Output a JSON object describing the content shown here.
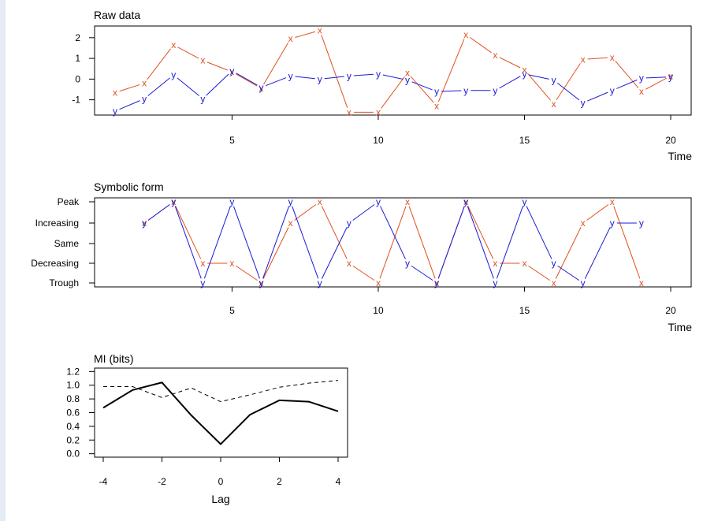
{
  "colors": {
    "x_series": "#e0501e",
    "y_series": "#1a1ad6",
    "mi_series": "#000000",
    "background_strip": "#e5ebf6"
  },
  "chart_data": [
    {
      "type": "line",
      "title": "Raw data",
      "xlabel": "Time",
      "ylabel": "",
      "xlim": [
        1,
        20
      ],
      "ylim": [
        -1.7,
        2.45
      ],
      "x_ticks": [
        5,
        10,
        15,
        20
      ],
      "y_ticks": [
        -1,
        0,
        1,
        2
      ],
      "x": [
        1,
        2,
        3,
        4,
        5,
        6,
        7,
        8,
        9,
        10,
        11,
        12,
        13,
        14,
        15,
        16,
        17,
        18,
        19,
        20
      ],
      "series": [
        {
          "marker": "x",
          "color": "#e0501e",
          "values": [
            -0.65,
            -0.2,
            1.65,
            0.9,
            0.35,
            -0.45,
            1.95,
            2.35,
            -1.6,
            -1.6,
            0.3,
            -1.3,
            2.15,
            1.15,
            0.45,
            -1.2,
            0.95,
            1.05,
            -0.6,
            0.15
          ]
        },
        {
          "marker": "y",
          "color": "#1a1ad6",
          "values": [
            -1.55,
            -0.95,
            0.2,
            -0.95,
            0.4,
            -0.4,
            0.15,
            0.0,
            0.15,
            0.25,
            -0.05,
            -0.6,
            -0.55,
            -0.55,
            0.25,
            -0.05,
            -1.15,
            -0.55,
            0.05,
            0.1
          ]
        }
      ]
    },
    {
      "type": "line",
      "title": "Symbolic form",
      "xlabel": "Time",
      "ylabel": "",
      "xlim": [
        1,
        20
      ],
      "categories": [
        "Trough",
        "Decreasing",
        "Same",
        "Increasing",
        "Peak"
      ],
      "x_ticks": [
        5,
        10,
        15,
        20
      ],
      "x": [
        2,
        3,
        4,
        5,
        6,
        7,
        8,
        9,
        10,
        11,
        12,
        13,
        14,
        15,
        16,
        17,
        18,
        19
      ],
      "series": [
        {
          "marker": "x",
          "color": "#e0501e",
          "values": [
            "Increasing",
            "Peak",
            "Decreasing",
            "Decreasing",
            "Trough",
            "Increasing",
            "Peak",
            "Decreasing",
            "Trough",
            "Peak",
            "Trough",
            "Peak",
            "Decreasing",
            "Decreasing",
            "Trough",
            "Increasing",
            "Peak",
            "Trough"
          ]
        },
        {
          "marker": "y",
          "color": "#1a1ad6",
          "values": [
            "Increasing",
            "Peak",
            "Trough",
            "Peak",
            "Trough",
            "Peak",
            "Trough",
            "Increasing",
            "Peak",
            "Decreasing",
            "Trough",
            "Peak",
            "Trough",
            "Peak",
            "Decreasing",
            "Trough",
            "Increasing",
            "Increasing"
          ]
        }
      ]
    },
    {
      "type": "line",
      "title": "MI (bits)",
      "xlabel": "Lag",
      "ylabel": "",
      "xlim": [
        -4,
        4
      ],
      "ylim": [
        -0.05,
        1.25
      ],
      "x_ticks": [
        -4,
        -2,
        0,
        2,
        4
      ],
      "y_ticks": [
        "0.0",
        "0.2",
        "0.4",
        "0.6",
        "0.8",
        "1.0",
        "1.2"
      ],
      "x": [
        -4,
        -3,
        -2,
        -1,
        0,
        1,
        2,
        3,
        4
      ],
      "series": [
        {
          "style": "solid",
          "color": "#000000",
          "values": [
            0.67,
            0.93,
            1.04,
            0.56,
            0.14,
            0.57,
            0.78,
            0.76,
            0.62
          ]
        },
        {
          "style": "dashed",
          "color": "#000000",
          "values": [
            0.98,
            0.98,
            0.82,
            0.96,
            0.76,
            0.86,
            0.97,
            1.03,
            1.07
          ]
        }
      ]
    }
  ]
}
